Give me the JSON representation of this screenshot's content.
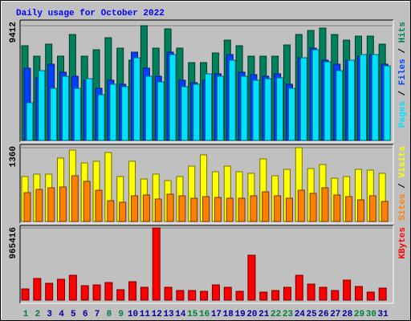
{
  "chart_data": {
    "type": "bar",
    "title": "Daily usage for October 2022",
    "categories": [
      "1",
      "2",
      "3",
      "4",
      "5",
      "6",
      "7",
      "8",
      "9",
      "10",
      "11",
      "12",
      "13",
      "14",
      "15",
      "16",
      "17",
      "18",
      "19",
      "20",
      "21",
      "22",
      "23",
      "24",
      "25",
      "26",
      "27",
      "28",
      "29",
      "30",
      "31"
    ],
    "category_colors": [
      "#008040",
      "#008040",
      "#0000a0",
      "#0000a0",
      "#0000a0",
      "#0000a0",
      "#0000a0",
      "#008040",
      "#008040",
      "#0000a0",
      "#0000a0",
      "#0000a0",
      "#0000a0",
      "#0000a0",
      "#008040",
      "#008040",
      "#0000a0",
      "#0000a0",
      "#0000a0",
      "#0000a0",
      "#0000a0",
      "#008040",
      "#008040",
      "#0000a0",
      "#0000a0",
      "#0000a0",
      "#0000a0",
      "#0000a0",
      "#008040",
      "#008040",
      "#0000a0"
    ],
    "legend_separator": " / ",
    "panels": [
      {
        "ylim": [
          0,
          9412
        ],
        "yticks": [
          9412
        ],
        "series": [
          {
            "name": "Pages",
            "color": "#00e0ff",
            "values": [
              3094,
              5726,
              4278,
              5266,
              4278,
              5068,
              3752,
              4607,
              4410,
              6779,
              5266,
              4805,
              7043,
              4410,
              4607,
              5463,
              5266,
              6582,
              5266,
              4937,
              5068,
              5134,
              4278,
              6779,
              7438,
              6450,
              5726,
              6582,
              7043,
              7043,
              6121
            ]
          },
          {
            "name": "Files",
            "color": "#0040ff",
            "values": [
              5924,
              5134,
              6253,
              5595,
              5266,
              4937,
              4278,
              4937,
              4607,
              7240,
              5924,
              5266,
              7240,
              4937,
              4739,
              4937,
              5463,
              7043,
              5595,
              5397,
              5266,
              5463,
              4607,
              6779,
              7569,
              6582,
              6253,
              6582,
              6911,
              7043,
              6253
            ]
          },
          {
            "name": "Hits",
            "color": "#00805c",
            "values": [
              7767,
              6911,
              7898,
              6911,
              8688,
              6911,
              7437,
              8425,
              7569,
              6582,
              9412,
              7569,
              9149,
              7569,
              6384,
              6384,
              7174,
              8227,
              7767,
              6911,
              6911,
              6911,
              7832,
              8688,
              9017,
              9214,
              8688,
              8227,
              8556,
              8556,
              7898
            ]
          }
        ]
      },
      {
        "ylim": [
          0,
          1360
        ],
        "yticks": [
          1360
        ],
        "series": [
          {
            "name": "Sites",
            "color": "#ff8000",
            "values": [
              532,
              591,
              621,
              636,
              842,
              739,
              576,
              384,
              355,
              473,
              488,
              414,
              503,
              473,
              429,
              458,
              443,
              429,
              429,
              473,
              547,
              473,
              429,
              576,
              517,
              621,
              488,
              458,
              399,
              473,
              370
            ]
          },
          {
            "name": "Visits",
            "color": "#ffff00",
            "values": [
              828,
              872,
              872,
              1168,
              1315,
              1079,
              1109,
              1271,
              828,
              1109,
              783,
              872,
              754,
              828,
              1020,
              1227,
              916,
              1020,
              916,
              887,
              1153,
              842,
              961,
              1360,
              975,
              1049,
              798,
              828,
              961,
              946,
              887
            ]
          }
        ]
      },
      {
        "ylim": [
          0,
          965416
        ],
        "yticks": [
          965416
        ],
        "series": [
          {
            "name": "KBytes",
            "color": "#ff0000",
            "values": [
              150178,
              289629,
              225267,
              278902,
              332537,
              193086,
              203813,
              235994,
              139451,
              246721,
              171632,
              965416,
              171632,
              128724,
              128724,
              117997,
              203813,
              171632,
              117997,
              600712,
              107270,
              128724,
              171632,
              332537,
              214540,
              171632,
              128724,
              268175,
              182359,
              107270,
              160905
            ]
          }
        ]
      }
    ]
  }
}
